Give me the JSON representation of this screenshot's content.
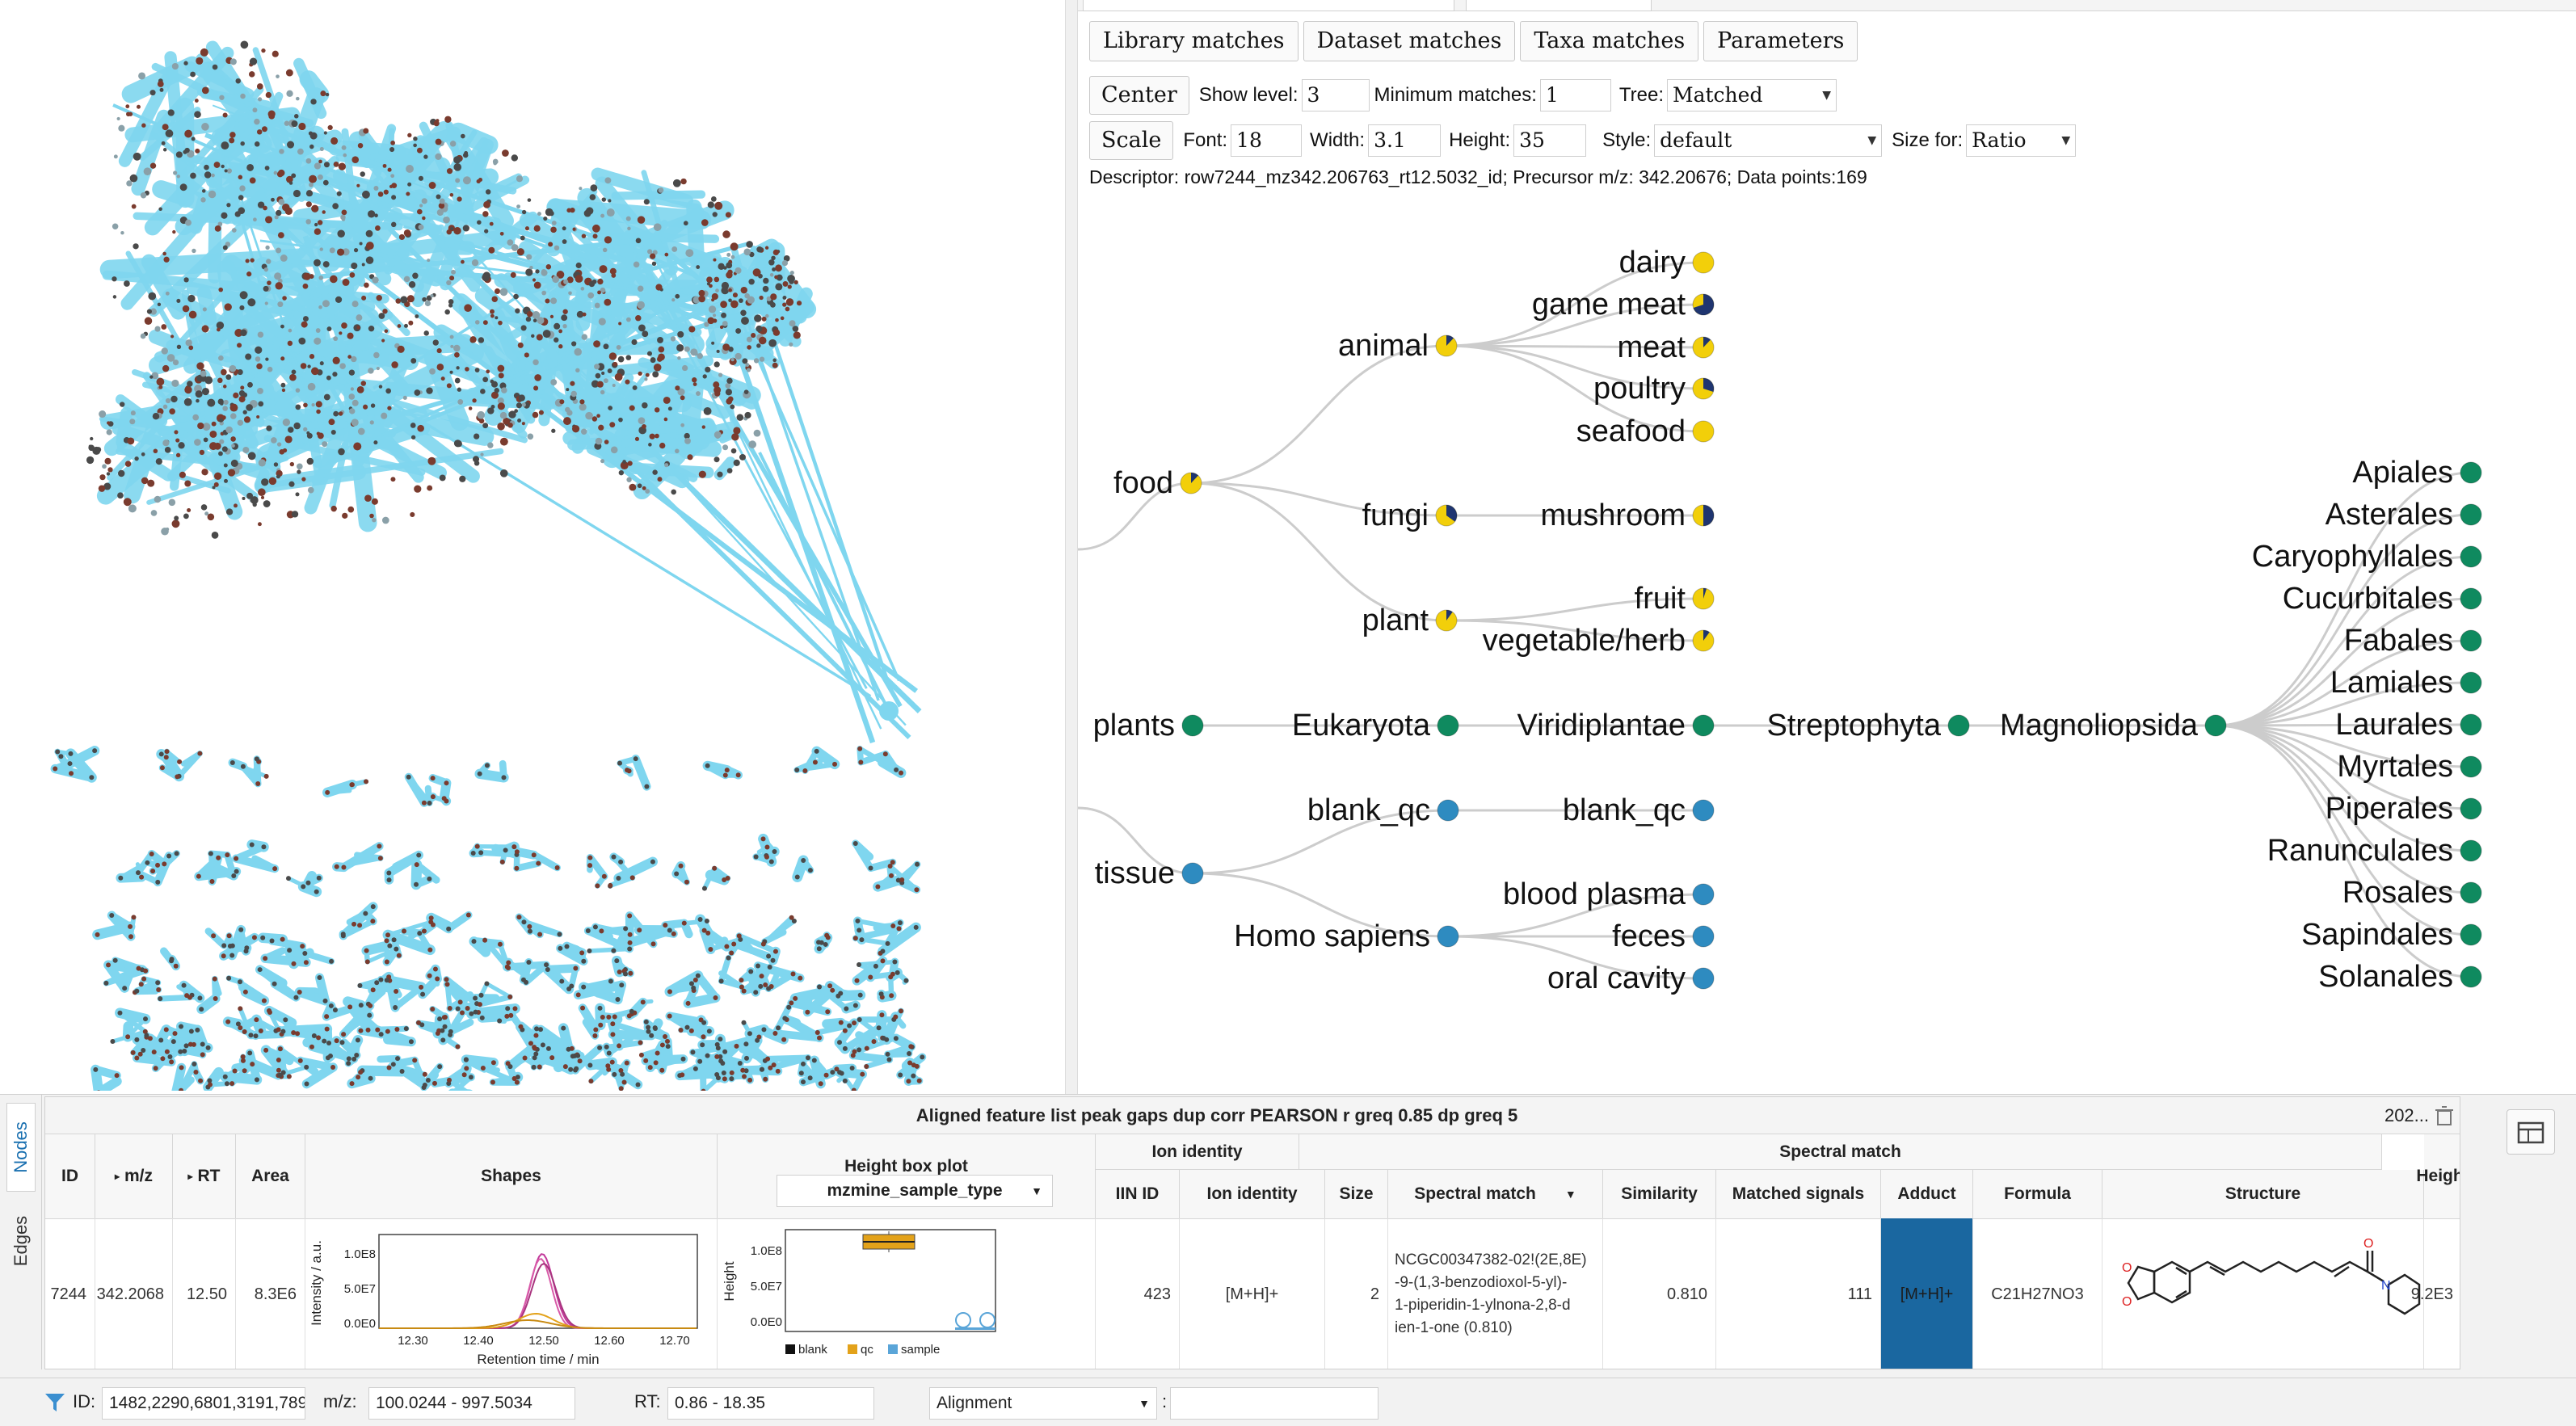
{
  "tabs": [
    "Library matches",
    "Dataset matches",
    "Taxa matches",
    "Parameters"
  ],
  "controls": {
    "center_label": "Center",
    "show_level_label": "Show level:",
    "show_level_value": "3",
    "minimum_matches_label": "Minimum matches:",
    "minimum_matches_value": "1",
    "tree_label": "Tree:",
    "tree_value": "Matched",
    "scale_label": "Scale",
    "font_label": "Font:",
    "font_value": "18",
    "width_label": "Width:",
    "width_value": "3.1",
    "height_label": "Height:",
    "height_value": "35",
    "style_label": "Style:",
    "style_value": "default",
    "size_for_label": "Size for:",
    "size_for_value": "Ratio"
  },
  "descriptor": "Descriptor: row7244_mz342.206763_rt12.5032_id; Precursor m/z: 342.20676; Data points:169",
  "colors": {
    "food": "#f2cf0a",
    "food_dark": "#1f3570",
    "plants": "#0f8a5f",
    "tissue": "#2e8bc0",
    "edge": "#cccccc",
    "network_edge": "#7fd6ef",
    "adduct_highlight": "#1a67a0"
  },
  "tree": {
    "labels": {
      "food": "food",
      "animal": "animal",
      "dairy": "dairy",
      "game_meat": "game meat",
      "meat": "meat",
      "poultry": "poultry",
      "seafood": "seafood",
      "fungi": "fungi",
      "mushroom": "mushroom",
      "plant": "plant",
      "fruit": "fruit",
      "vegetable_herb": "vegetable/herb",
      "plants": "plants",
      "eukaryota": "Eukaryota",
      "viridiplantae": "Viridiplantae",
      "streptophyta": "Streptophyta",
      "magnoliopsida": "Magnoliopsida",
      "tissue": "tissue",
      "blank_qc_1": "blank_qc",
      "blank_qc_2": "blank_qc",
      "homo_sapiens": "Homo sapiens",
      "blood_plasma": "blood plasma",
      "feces": "feces",
      "oral_cavity": "oral cavity"
    },
    "orders": [
      "Apiales",
      "Asterales",
      "Caryophyllales",
      "Cucurbitales",
      "Fabales",
      "Lamiales",
      "Laurales",
      "Myrtales",
      "Piperales",
      "Ranunculales",
      "Rosales",
      "Sapindales",
      "Solanales"
    ]
  },
  "table": {
    "title": "Aligned feature list peak gaps dup corr PEARSON r greq 0.85 dp greq 5",
    "title_right": "202...",
    "side_tabs": {
      "nodes": "Nodes",
      "edges": "Edges"
    },
    "headers": {
      "id": "ID",
      "mz": "m/z",
      "rt": "RT",
      "area": "Area",
      "shapes": "Shapes",
      "height_box_plot": "Height box plot",
      "sample_type_select": "mzmine_sample_type",
      "ion_identity_group": "Ion identity",
      "iin_id": "IIN ID",
      "ion_identity": "Ion identity",
      "size": "Size",
      "spectral_match_group": "Spectral match",
      "spectral_match": "Spectral match",
      "similarity": "Similarity",
      "matched_signals": "Matched signals",
      "adduct": "Adduct",
      "formula": "Formula",
      "structure": "Structure",
      "height": "Height"
    },
    "row": {
      "id": "7244",
      "mz": "342.2068",
      "rt": "12.50",
      "area": "8.3E6",
      "iin_id": "423",
      "ion_identity": "[M+H]+",
      "size": "2",
      "spectral_match_lines": [
        "NCGC00347382-02!(2E,8E)",
        "-9-(1,3-benzodioxol-5-yl)-",
        "1-piperidin-1-ylnona-2,8-d",
        "ien-1-one (0.810)"
      ],
      "similarity": "0.810",
      "matched_signals": "111",
      "adduct": "[M+H]+",
      "formula": "C21H27NO3",
      "height": "9.2E3"
    },
    "shapes_plot": {
      "ylabel": "Intensity / a.u.",
      "xlabel": "Retention time / min",
      "y_ticks": [
        "1.0E8",
        "5.0E7",
        "0.0E0"
      ],
      "x_ticks": [
        "12.30",
        "12.40",
        "12.50",
        "12.60",
        "12.70"
      ]
    },
    "box_plot": {
      "ylabel": "Height",
      "y_ticks": [
        "1.0E8",
        "5.0E7",
        "0.0E0"
      ],
      "legend": [
        "blank",
        "qc",
        "sample"
      ],
      "legend_colors": [
        "#111111",
        "#e3a21a",
        "#5aa5d8"
      ]
    }
  },
  "filter": {
    "id_label": "ID:",
    "id_value": "1482,2290,6801,3191,789",
    "mz_label": "m/z:",
    "mz_value": "100.0244 - 997.5034",
    "rt_label": "RT:",
    "rt_value": "0.86 - 18.35",
    "alignment_value": "Alignment",
    "separator": ":"
  }
}
